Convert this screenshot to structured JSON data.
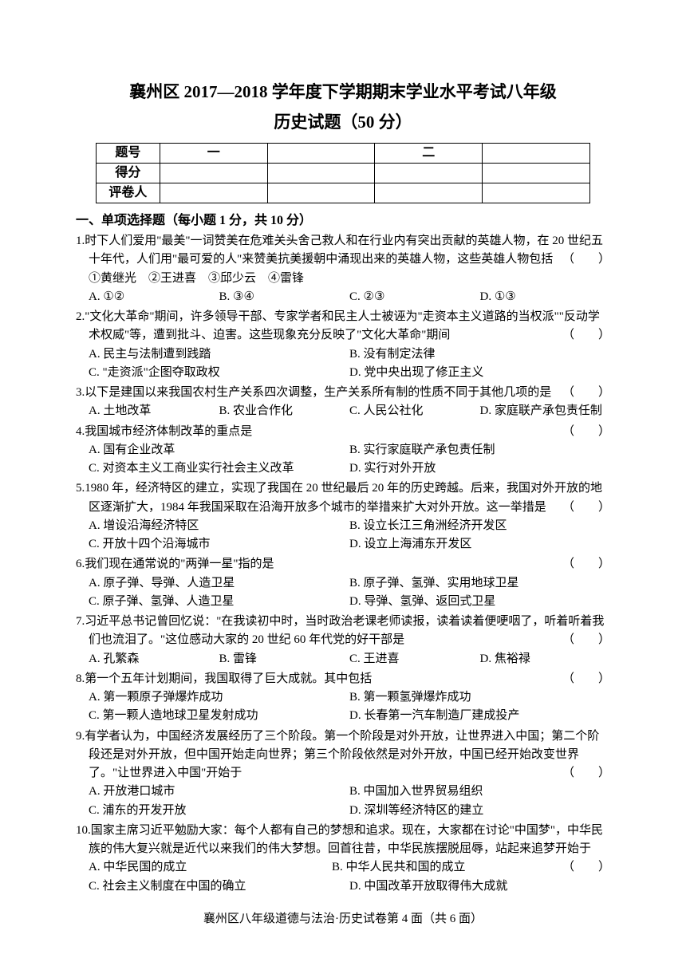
{
  "title_main": "襄州区 2017—2018 学年度下学期期末学业水平考试八年级",
  "title_sub": "历史试题（50 分）",
  "score_table": {
    "row1": [
      "题号",
      "一",
      "",
      "二",
      ""
    ],
    "row2": [
      "得分",
      "",
      "",
      "",
      ""
    ],
    "row3": [
      "评卷人",
      "",
      "",
      "",
      ""
    ]
  },
  "section_header": "一、单项选择题（每小题 1 分，共 10 分）",
  "q1": {
    "num": "1.",
    "text": "时下人们爱用\"最美\"一词赞美在危难关头舍己救人和在行业内有突出贡献的英雄人物，在 20 世纪五十年代，人们用\"最可爱的人\"来赞美抗美援朝中涌现出来的英雄人物，这些英雄人物包括",
    "sub": "①黄继光　②王进喜　③邱少云　④雷锋",
    "opts": [
      "A. ①②",
      "B. ③④",
      "C. ②③",
      "D. ①③"
    ]
  },
  "q2": {
    "num": "2.",
    "text": "\"文化大革命\"期间，许多领导干部、专家学者和民主人士被诬为\"走资本主义道路的当权派\"\"反动学术权威\"等，遭到批斗、迫害。这些现象充分反映了\"文化大革命\"期间",
    "opts": [
      "A. 民主与法制遭到践踏",
      "B. 没有制定法律",
      "C. \"走资派\"企图夺取政权",
      "D. 党中央出现了修正主义"
    ]
  },
  "q3": {
    "num": "3.",
    "text": "以下是建国以来我国农村生产关系四次调整，生产关系所有制的性质不同于其他几项的是",
    "opts": [
      "A. 土地改革",
      "B. 农业合作化",
      "C. 人民公社化",
      "D. 家庭联产承包责任制"
    ]
  },
  "q4": {
    "num": "4.",
    "text": "我国城市经济体制改革的重点是",
    "opts": [
      "A. 国有企业改革",
      "B. 实行家庭联产承包责任制",
      "C. 对资本主义工商业实行社会主义改革",
      "D. 实行对外开放"
    ]
  },
  "q5": {
    "num": "5.",
    "text": "1980 年，经济特区的建立，实现了我国在 20 世纪最后 20 年的历史跨越。后来，我国对外开放的地区逐渐扩大，1984 年我国采取在沿海开放多个城市的举措来扩大对外开放。这一举措是",
    "opts": [
      "A. 增设沿海经济特区",
      "B. 设立长江三角洲经济开发区",
      "C. 开放十四个沿海城市",
      "D. 设立上海浦东开发区"
    ]
  },
  "q6": {
    "num": "6.",
    "text": "我们现在通常说的\"两弹一星\"指的是",
    "opts": [
      "A. 原子弹、导弹、人造卫星",
      "B. 原子弹、氢弹、实用地球卫星",
      "C. 原子弹、氢弹、人造卫星",
      "D. 导弹、氢弹、返回式卫星"
    ]
  },
  "q7": {
    "num": "7.",
    "text": "习近平总书记曾回忆说：\"在我读初中时，当时政治老课老师读报，读着读着便哽咽了，听着听着我们也流泪了。\"这位感动大家的 20 世纪 60 年代党的好干部是",
    "opts": [
      "A. 孔繁森",
      "B. 雷锋",
      "C. 王进喜",
      "D. 焦裕禄"
    ]
  },
  "q8": {
    "num": "8.",
    "text": "第一个五年计划期间，我国取得了巨大成就。其中包括",
    "opts": [
      "A. 第一颗原子弹爆炸成功",
      "B. 第一颗氢弹爆炸成功",
      "C. 第一颗人造地球卫星发射成功",
      "D. 长春第一汽车制造厂建成投产"
    ]
  },
  "q9": {
    "num": "9.",
    "text": "有学者认为，中国经济发展经历了三个阶段。第一个阶段是对外开放，让世界进入中国；第二个阶段还是对外开放，但中国开始走向世界；第三个阶段依然是对外开放，中国已经开始改变世界了。\"让世界进入中国\"开始于",
    "opts": [
      "A. 开放港口城市",
      "B. 中国加入世界贸易组织",
      "C. 浦东的开发开放",
      "D. 深圳等经济特区的建立"
    ]
  },
  "q10": {
    "num": "10.",
    "text": "国家主席习近平勉励大家：每个人都有自己的梦想和追求。现在，大家都在讨论\"中国梦\"，中华民族的伟大复兴就是近代以来我们的伟大梦想。回首往昔，中华民族摆脱屈辱，站起来追梦开始于",
    "opts": [
      "A. 中华民国的成立",
      "B. 中华人民共和国的成立",
      "C. 社会主义制度在中国的确立",
      "D. 中国改革开放取得伟大成就"
    ]
  },
  "footer": "襄州区八年级道德与法治·历史试卷第 4 面（共 6 面）",
  "bracket": "（　　）"
}
